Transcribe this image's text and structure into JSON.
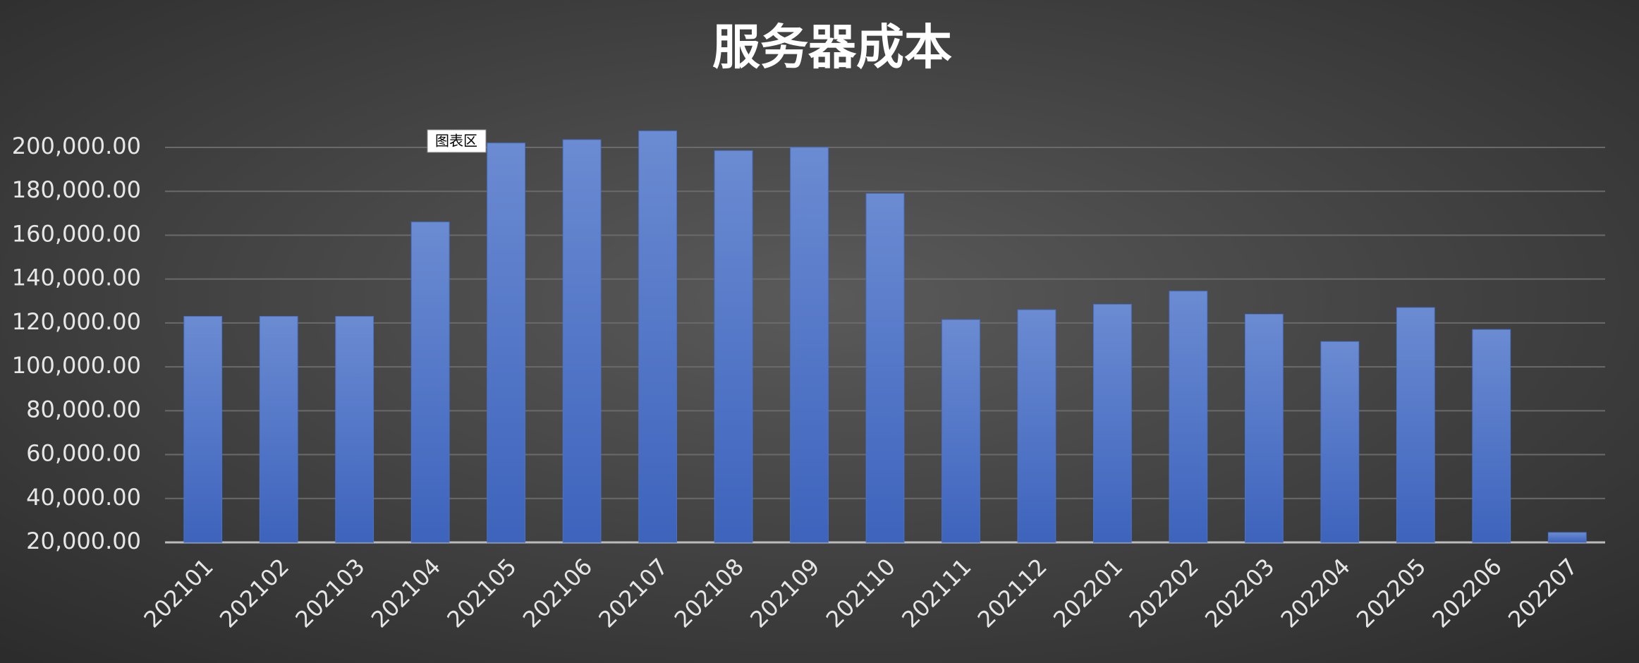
{
  "chart_data": {
    "type": "bar",
    "title": "服务器成本",
    "tooltip": "图表区",
    "categories": [
      "202101",
      "202102",
      "202103",
      "202104",
      "202105",
      "202106",
      "202107",
      "202108",
      "202109",
      "202110",
      "202111",
      "202112",
      "202201",
      "202202",
      "202203",
      "202204",
      "202205",
      "202206",
      "202207"
    ],
    "values": [
      123000,
      123000,
      123000,
      166000,
      202000,
      203500,
      207500,
      198500,
      200000,
      179000,
      121500,
      126000,
      128500,
      134500,
      124000,
      111500,
      127000,
      117000,
      24500
    ],
    "color": "#4a72c8",
    "ylim": [
      20000,
      200000
    ],
    "yticks": [
      {
        "value": 20000,
        "label": "20,000.00"
      },
      {
        "value": 40000,
        "label": "40,000.00"
      },
      {
        "value": 60000,
        "label": "60,000.00"
      },
      {
        "value": 80000,
        "label": "80,000.00"
      },
      {
        "value": 100000,
        "label": "100,000.00"
      },
      {
        "value": 120000,
        "label": "120,000.00"
      },
      {
        "value": 140000,
        "label": "140,000.00"
      },
      {
        "value": 160000,
        "label": "160,000.00"
      },
      {
        "value": 180000,
        "label": "180,000.00"
      },
      {
        "value": 200000,
        "label": "200,000.00"
      }
    ],
    "grid": true
  }
}
